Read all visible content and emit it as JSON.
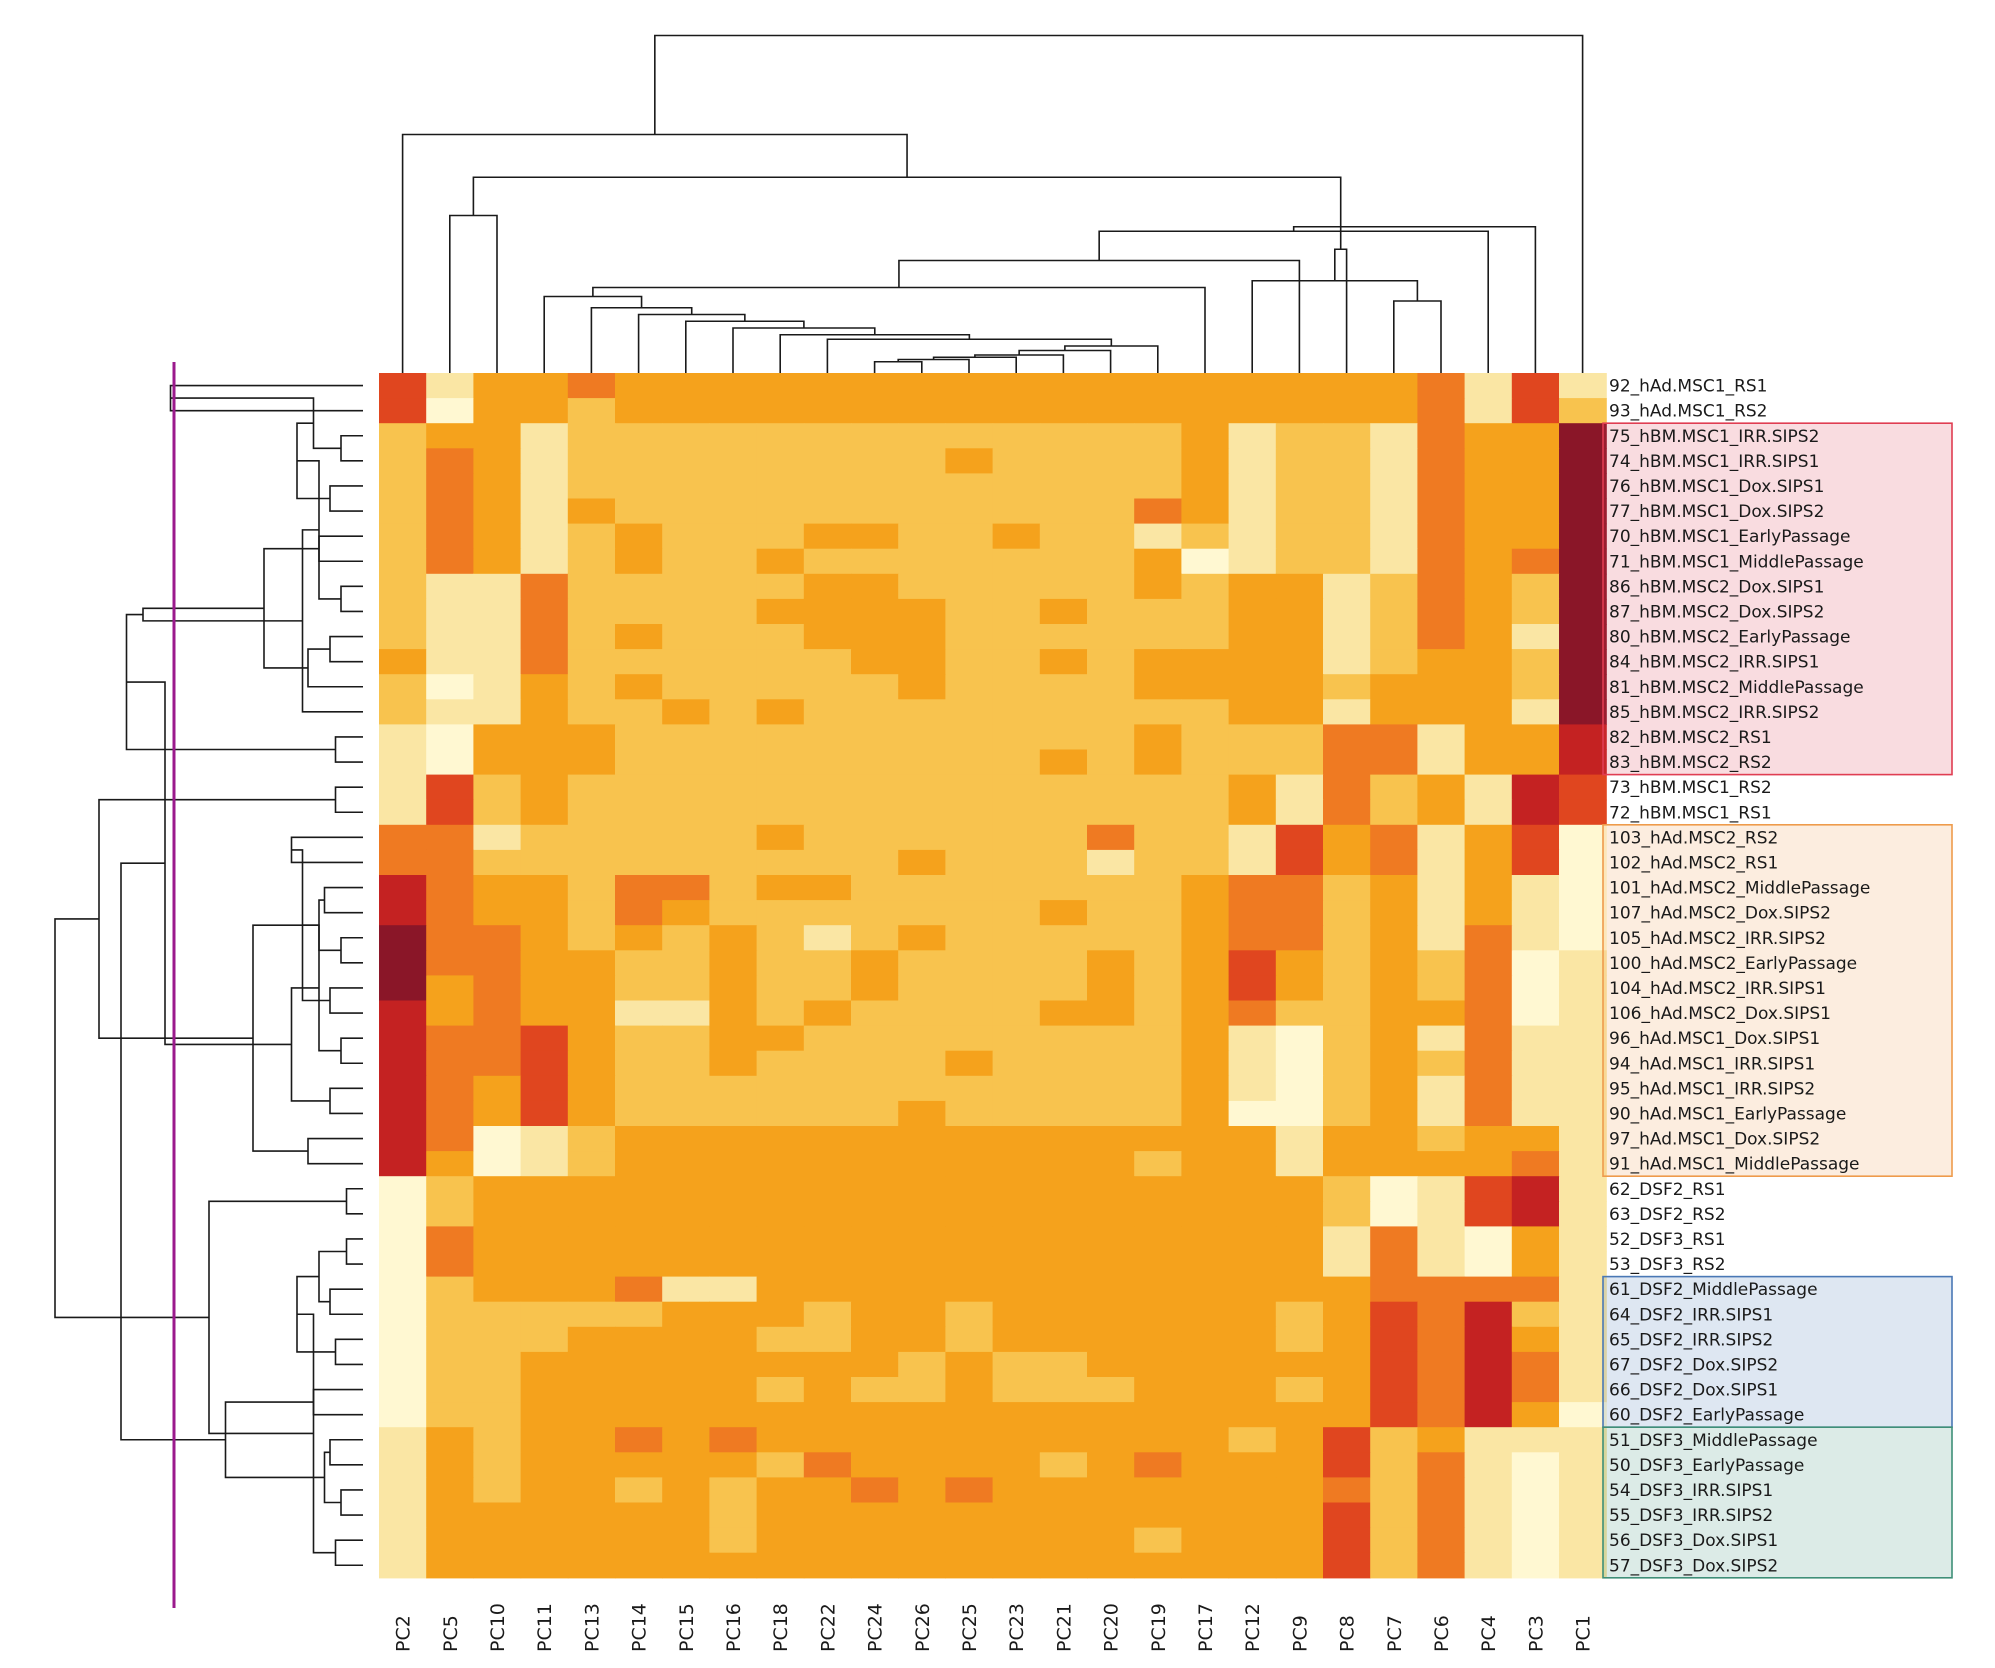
{
  "chart_data": {
    "type": "heatmap",
    "title": "",
    "xlabel": "",
    "ylabel": "",
    "colors": {
      "scale": [
        "#fff8d2",
        "#fae6a4",
        "#f8c34e",
        "#f5a21c",
        "#ef7a22",
        "#e0461f",
        "#c42222",
        "#8a1628"
      ],
      "highlight_red": "#e03d52",
      "highlight_orange": "#ee9b4c",
      "highlight_blue": "#4a78b5",
      "highlight_green": "#3f8f78",
      "cut_line": "#9b1a8c"
    },
    "columns": [
      "PC2",
      "PC5",
      "PC10",
      "PC11",
      "PC13",
      "PC14",
      "PC15",
      "PC16",
      "PC18",
      "PC22",
      "PC24",
      "PC26",
      "PC25",
      "PC23",
      "PC21",
      "PC20",
      "PC19",
      "PC17",
      "PC12",
      "PC9",
      "PC8",
      "PC7",
      "PC6",
      "PC4",
      "PC3",
      "PC1"
    ],
    "rows": [
      "92_hAd.MSC1_RS1",
      "93_hAd.MSC1_RS2",
      "75_hBM.MSC1_IRR.SIPS2",
      "74_hBM.MSC1_IRR.SIPS1",
      "76_hBM.MSC1_Dox.SIPS1",
      "77_hBM.MSC1_Dox.SIPS2",
      "70_hBM.MSC1_EarlyPassage",
      "71_hBM.MSC1_MiddlePassage",
      "86_hBM.MSC2_Dox.SIPS1",
      "87_hBM.MSC2_Dox.SIPS2",
      "80_hBM.MSC2_EarlyPassage",
      "84_hBM.MSC2_IRR.SIPS1",
      "81_hBM.MSC2_MiddlePassage",
      "85_hBM.MSC2_IRR.SIPS2",
      "82_hBM.MSC2_RS1",
      "83_hBM.MSC2_RS2",
      "73_hBM.MSC1_RS2",
      "72_hBM.MSC1_RS1",
      "103_hAd.MSC2_RS2",
      "102_hAd.MSC2_RS1",
      "101_hAd.MSC2_MiddlePassage",
      "107_hAd.MSC2_Dox.SIPS2",
      "105_hAd.MSC2_IRR.SIPS2",
      "100_hAd.MSC2_EarlyPassage",
      "104_hAd.MSC2_IRR.SIPS1",
      "106_hAd.MSC2_Dox.SIPS1",
      "96_hAd.MSC1_Dox.SIPS1",
      "94_hAd.MSC1_IRR.SIPS1",
      "95_hAd.MSC1_IRR.SIPS2",
      "90_hAd.MSC1_EarlyPassage",
      "97_hAd.MSC1_Dox.SIPS2",
      "91_hAd.MSC1_MiddlePassage",
      "62_DSF2_RS1",
      "63_DSF2_RS2",
      "52_DSF3_RS1",
      "53_DSF3_RS2",
      "61_DSF2_MiddlePassage",
      "64_DSF2_IRR.SIPS1",
      "65_DSF2_IRR.SIPS2",
      "67_DSF2_Dox.SIPS2",
      "66_DSF2_Dox.SIPS1",
      "60_DSF2_EarlyPassage",
      "51_DSF3_MiddlePassage",
      "50_DSF3_EarlyPassage",
      "54_DSF3_IRR.SIPS1",
      "55_DSF3_IRR.SIPS2",
      "56_DSF3_Dox.SIPS1",
      "57_DSF3_Dox.SIPS2"
    ],
    "highlight_groups": [
      {
        "color": "highlight_red",
        "first_row": 2,
        "last_row": 15
      },
      {
        "color": "highlight_orange",
        "first_row": 18,
        "last_row": 31
      },
      {
        "color": "highlight_blue",
        "first_row": 36,
        "last_row": 41
      },
      {
        "color": "highlight_green",
        "first_row": 42,
        "last_row": 47
      }
    ],
    "values_scale": "0 = lightest (pale yellow) to 7 = darkest (dark red)",
    "values": [
      [
        5,
        1,
        3,
        3,
        4,
        3,
        3,
        3,
        3,
        3,
        3,
        3,
        3,
        3,
        3,
        3,
        3,
        3,
        3,
        3,
        3,
        3,
        4,
        1,
        5,
        1
      ],
      [
        5,
        0,
        3,
        3,
        2,
        3,
        3,
        3,
        3,
        3,
        3,
        3,
        3,
        3,
        3,
        3,
        3,
        3,
        3,
        3,
        3,
        3,
        4,
        1,
        5,
        2
      ],
      [
        2,
        3,
        3,
        1,
        2,
        2,
        2,
        2,
        2,
        2,
        2,
        2,
        2,
        2,
        2,
        2,
        2,
        3,
        1,
        2,
        2,
        1,
        4,
        3,
        3,
        7
      ],
      [
        2,
        4,
        3,
        1,
        2,
        2,
        2,
        2,
        2,
        2,
        2,
        2,
        3,
        2,
        2,
        2,
        2,
        3,
        1,
        2,
        2,
        1,
        4,
        3,
        3,
        7
      ],
      [
        2,
        4,
        3,
        1,
        2,
        2,
        2,
        2,
        2,
        2,
        2,
        2,
        2,
        2,
        2,
        2,
        2,
        3,
        1,
        2,
        2,
        1,
        4,
        3,
        3,
        7
      ],
      [
        2,
        4,
        3,
        1,
        3,
        2,
        2,
        2,
        2,
        2,
        2,
        2,
        2,
        2,
        2,
        2,
        4,
        3,
        1,
        2,
        2,
        1,
        4,
        3,
        3,
        7
      ],
      [
        2,
        4,
        3,
        1,
        2,
        3,
        2,
        2,
        2,
        3,
        3,
        2,
        2,
        3,
        2,
        2,
        1,
        2,
        1,
        2,
        2,
        1,
        4,
        3,
        3,
        7
      ],
      [
        2,
        4,
        3,
        1,
        2,
        3,
        2,
        2,
        3,
        2,
        2,
        2,
        2,
        2,
        2,
        2,
        3,
        0,
        1,
        2,
        2,
        1,
        4,
        3,
        4,
        7
      ],
      [
        2,
        1,
        1,
        4,
        2,
        2,
        2,
        2,
        2,
        3,
        3,
        2,
        2,
        2,
        2,
        2,
        3,
        2,
        3,
        3,
        1,
        2,
        4,
        3,
        2,
        7
      ],
      [
        2,
        1,
        1,
        4,
        2,
        2,
        2,
        2,
        3,
        3,
        3,
        3,
        2,
        2,
        3,
        2,
        2,
        2,
        3,
        3,
        1,
        2,
        4,
        3,
        2,
        7
      ],
      [
        2,
        1,
        1,
        4,
        2,
        3,
        2,
        2,
        2,
        3,
        3,
        3,
        2,
        2,
        2,
        2,
        2,
        2,
        3,
        3,
        1,
        2,
        4,
        3,
        1,
        7
      ],
      [
        3,
        1,
        1,
        4,
        2,
        2,
        2,
        2,
        2,
        2,
        3,
        3,
        2,
        2,
        3,
        2,
        3,
        3,
        3,
        3,
        1,
        2,
        3,
        3,
        2,
        7
      ],
      [
        2,
        0,
        1,
        3,
        2,
        3,
        2,
        2,
        2,
        2,
        2,
        3,
        2,
        2,
        2,
        2,
        3,
        3,
        3,
        3,
        2,
        3,
        3,
        3,
        2,
        7
      ],
      [
        2,
        1,
        1,
        3,
        2,
        2,
        3,
        2,
        3,
        2,
        2,
        2,
        2,
        2,
        2,
        2,
        2,
        2,
        3,
        3,
        1,
        3,
        3,
        3,
        1,
        7
      ],
      [
        1,
        0,
        3,
        3,
        3,
        2,
        2,
        2,
        2,
        2,
        2,
        2,
        2,
        2,
        2,
        2,
        3,
        2,
        2,
        2,
        4,
        4,
        1,
        3,
        3,
        6
      ],
      [
        1,
        0,
        3,
        3,
        3,
        2,
        2,
        2,
        2,
        2,
        2,
        2,
        2,
        2,
        3,
        2,
        3,
        2,
        2,
        2,
        4,
        4,
        1,
        3,
        3,
        6
      ],
      [
        1,
        5,
        2,
        3,
        2,
        2,
        2,
        2,
        2,
        2,
        2,
        2,
        2,
        2,
        2,
        2,
        2,
        2,
        3,
        1,
        4,
        2,
        3,
        1,
        6,
        5
      ],
      [
        1,
        5,
        2,
        3,
        2,
        2,
        2,
        2,
        2,
        2,
        2,
        2,
        2,
        2,
        2,
        2,
        2,
        2,
        3,
        1,
        4,
        2,
        3,
        1,
        6,
        5
      ],
      [
        4,
        4,
        1,
        2,
        2,
        2,
        2,
        2,
        3,
        2,
        2,
        2,
        2,
        2,
        2,
        4,
        2,
        2,
        1,
        5,
        3,
        4,
        1,
        3,
        5,
        0
      ],
      [
        4,
        4,
        2,
        2,
        2,
        2,
        2,
        2,
        2,
        2,
        2,
        3,
        2,
        2,
        2,
        1,
        2,
        2,
        1,
        5,
        3,
        4,
        1,
        3,
        5,
        0
      ],
      [
        6,
        4,
        3,
        3,
        2,
        4,
        4,
        2,
        3,
        3,
        2,
        2,
        2,
        2,
        2,
        2,
        2,
        3,
        4,
        4,
        2,
        3,
        1,
        3,
        1,
        0
      ],
      [
        6,
        4,
        3,
        3,
        2,
        4,
        3,
        2,
        2,
        2,
        2,
        2,
        2,
        2,
        3,
        2,
        2,
        3,
        4,
        4,
        2,
        3,
        1,
        3,
        1,
        0
      ],
      [
        7,
        4,
        4,
        3,
        2,
        3,
        2,
        3,
        2,
        1,
        2,
        3,
        2,
        2,
        2,
        2,
        2,
        3,
        4,
        4,
        2,
        3,
        1,
        4,
        1,
        0
      ],
      [
        7,
        4,
        4,
        3,
        3,
        2,
        2,
        3,
        2,
        2,
        3,
        2,
        2,
        2,
        2,
        3,
        2,
        3,
        5,
        3,
        2,
        3,
        2,
        4,
        0,
        1
      ],
      [
        7,
        3,
        4,
        3,
        3,
        2,
        2,
        3,
        2,
        2,
        3,
        2,
        2,
        2,
        2,
        3,
        2,
        3,
        5,
        3,
        2,
        3,
        2,
        4,
        0,
        1
      ],
      [
        6,
        3,
        4,
        3,
        3,
        1,
        1,
        3,
        2,
        3,
        2,
        2,
        2,
        2,
        3,
        3,
        2,
        3,
        4,
        2,
        2,
        3,
        3,
        4,
        0,
        1
      ],
      [
        6,
        4,
        4,
        5,
        3,
        2,
        2,
        3,
        3,
        2,
        2,
        2,
        2,
        2,
        2,
        2,
        2,
        3,
        1,
        0,
        2,
        3,
        1,
        4,
        1,
        1
      ],
      [
        6,
        4,
        4,
        5,
        3,
        2,
        2,
        3,
        2,
        2,
        2,
        2,
        3,
        2,
        2,
        2,
        2,
        3,
        1,
        0,
        2,
        3,
        2,
        4,
        1,
        1
      ],
      [
        6,
        4,
        3,
        5,
        3,
        2,
        2,
        2,
        2,
        2,
        2,
        2,
        2,
        2,
        2,
        2,
        2,
        3,
        1,
        0,
        2,
        3,
        1,
        4,
        1,
        1
      ],
      [
        6,
        4,
        3,
        5,
        3,
        2,
        2,
        2,
        2,
        2,
        2,
        3,
        2,
        2,
        2,
        2,
        2,
        3,
        0,
        0,
        2,
        3,
        1,
        4,
        1,
        1
      ],
      [
        6,
        4,
        0,
        1,
        2,
        3,
        3,
        3,
        3,
        3,
        3,
        3,
        3,
        3,
        3,
        3,
        3,
        3,
        3,
        1,
        3,
        3,
        2,
        3,
        3,
        1
      ],
      [
        6,
        3,
        0,
        1,
        2,
        3,
        3,
        3,
        3,
        3,
        3,
        3,
        3,
        3,
        3,
        3,
        2,
        3,
        3,
        1,
        3,
        3,
        3,
        3,
        4,
        1
      ],
      [
        0,
        2,
        3,
        3,
        3,
        3,
        3,
        3,
        3,
        3,
        3,
        3,
        3,
        3,
        3,
        3,
        3,
        3,
        3,
        3,
        2,
        0,
        1,
        5,
        6,
        1
      ],
      [
        0,
        2,
        3,
        3,
        3,
        3,
        3,
        3,
        3,
        3,
        3,
        3,
        3,
        3,
        3,
        3,
        3,
        3,
        3,
        3,
        2,
        0,
        1,
        5,
        6,
        1
      ],
      [
        0,
        4,
        3,
        3,
        3,
        3,
        3,
        3,
        3,
        3,
        3,
        3,
        3,
        3,
        3,
        3,
        3,
        3,
        3,
        3,
        1,
        4,
        1,
        0,
        3,
        1
      ],
      [
        0,
        4,
        3,
        3,
        3,
        3,
        3,
        3,
        3,
        3,
        3,
        3,
        3,
        3,
        3,
        3,
        3,
        3,
        3,
        3,
        1,
        4,
        1,
        0,
        3,
        1
      ],
      [
        0,
        2,
        3,
        3,
        3,
        4,
        1,
        1,
        3,
        3,
        3,
        3,
        3,
        3,
        3,
        3,
        3,
        3,
        3,
        3,
        3,
        4,
        4,
        4,
        4,
        1
      ],
      [
        0,
        2,
        2,
        2,
        2,
        2,
        3,
        3,
        3,
        2,
        3,
        3,
        2,
        3,
        3,
        3,
        3,
        3,
        3,
        2,
        3,
        5,
        4,
        6,
        2,
        1
      ],
      [
        0,
        2,
        2,
        2,
        3,
        3,
        3,
        3,
        2,
        2,
        3,
        3,
        2,
        3,
        3,
        3,
        3,
        3,
        3,
        2,
        3,
        5,
        4,
        6,
        3,
        1
      ],
      [
        0,
        2,
        2,
        3,
        3,
        3,
        3,
        3,
        3,
        3,
        3,
        2,
        3,
        2,
        2,
        3,
        3,
        3,
        3,
        3,
        3,
        5,
        4,
        6,
        4,
        1
      ],
      [
        0,
        2,
        2,
        3,
        3,
        3,
        3,
        3,
        2,
        3,
        2,
        2,
        3,
        2,
        2,
        2,
        3,
        3,
        3,
        2,
        3,
        5,
        4,
        6,
        4,
        1
      ],
      [
        0,
        2,
        2,
        3,
        3,
        3,
        3,
        3,
        3,
        3,
        3,
        3,
        3,
        3,
        3,
        3,
        3,
        3,
        3,
        3,
        3,
        5,
        4,
        6,
        3,
        0
      ],
      [
        1,
        3,
        2,
        3,
        3,
        4,
        3,
        4,
        3,
        3,
        3,
        3,
        3,
        3,
        3,
        3,
        3,
        3,
        2,
        3,
        5,
        2,
        3,
        1,
        1,
        1
      ],
      [
        1,
        3,
        2,
        3,
        3,
        3,
        3,
        3,
        2,
        4,
        3,
        3,
        3,
        3,
        2,
        3,
        4,
        3,
        3,
        3,
        5,
        2,
        4,
        1,
        0,
        1
      ],
      [
        1,
        3,
        2,
        3,
        3,
        2,
        3,
        2,
        3,
        3,
        4,
        3,
        4,
        3,
        3,
        3,
        3,
        3,
        3,
        3,
        4,
        2,
        4,
        1,
        0,
        1
      ],
      [
        1,
        3,
        3,
        3,
        3,
        3,
        3,
        2,
        3,
        3,
        3,
        3,
        3,
        3,
        3,
        3,
        3,
        3,
        3,
        3,
        5,
        2,
        4,
        1,
        0,
        1
      ],
      [
        1,
        3,
        3,
        3,
        3,
        3,
        3,
        2,
        3,
        3,
        3,
        3,
        3,
        3,
        3,
        3,
        2,
        3,
        3,
        3,
        5,
        2,
        4,
        1,
        0,
        1
      ],
      [
        1,
        3,
        3,
        3,
        3,
        3,
        3,
        3,
        3,
        3,
        3,
        3,
        3,
        3,
        3,
        3,
        3,
        3,
        3,
        3,
        5,
        2,
        4,
        1,
        0,
        1
      ]
    ]
  }
}
